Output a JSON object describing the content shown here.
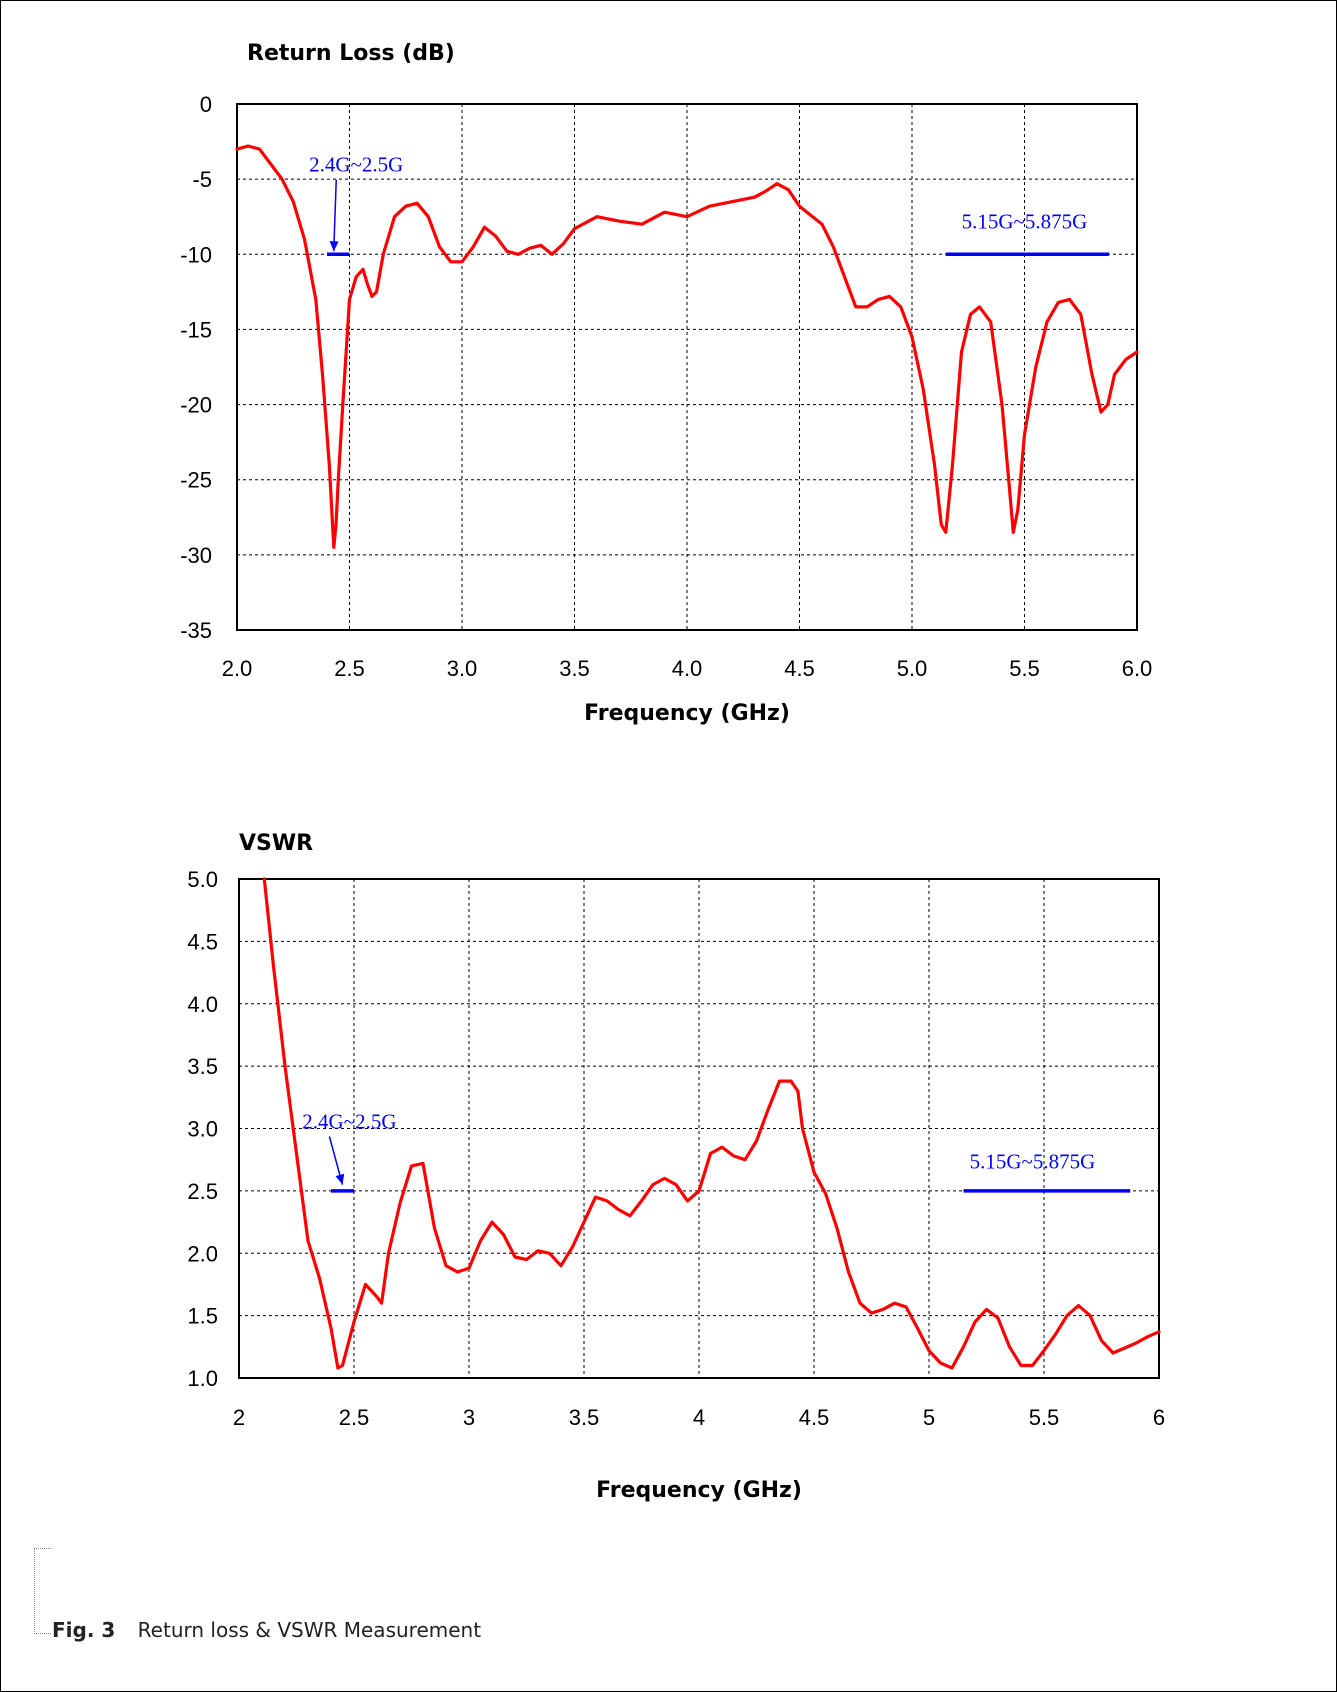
{
  "chart_data": [
    {
      "type": "line",
      "title": "Return Loss (dB)",
      "xlabel": "Frequency (GHz)",
      "ylabel": "",
      "xlim": [
        2.0,
        6.0
      ],
      "ylim": [
        -35,
        0
      ],
      "x_ticks": [
        "2.0",
        "2.5",
        "3.0",
        "3.5",
        "4.0",
        "4.5",
        "5.0",
        "5.5",
        "6.0"
      ],
      "y_ticks": [
        "0",
        "-5",
        "-10",
        "-15",
        "-20",
        "-25",
        "-30",
        "-35"
      ],
      "grid": true,
      "series": [
        {
          "color": "#ff0000",
          "x": [
            2.0,
            2.05,
            2.1,
            2.15,
            2.2,
            2.25,
            2.3,
            2.35,
            2.38,
            2.41,
            2.43,
            2.44,
            2.45,
            2.47,
            2.5,
            2.53,
            2.56,
            2.58,
            2.6,
            2.62,
            2.65,
            2.7,
            2.75,
            2.8,
            2.85,
            2.9,
            2.95,
            3.0,
            3.05,
            3.1,
            3.15,
            3.2,
            3.25,
            3.3,
            3.35,
            3.4,
            3.45,
            3.5,
            3.6,
            3.7,
            3.8,
            3.9,
            4.0,
            4.1,
            4.2,
            4.3,
            4.35,
            4.4,
            4.45,
            4.5,
            4.6,
            4.65,
            4.7,
            4.75,
            4.8,
            4.85,
            4.9,
            4.95,
            5.0,
            5.05,
            5.1,
            5.13,
            5.15,
            5.18,
            5.22,
            5.26,
            5.3,
            5.35,
            5.4,
            5.43,
            5.45,
            5.47,
            5.5,
            5.55,
            5.6,
            5.65,
            5.7,
            5.75,
            5.8,
            5.84,
            5.87,
            5.9,
            5.95,
            6.0
          ],
          "y": [
            -3.0,
            -2.8,
            -3.0,
            -4.0,
            -5.0,
            -6.5,
            -9.0,
            -13.0,
            -18.0,
            -24.0,
            -29.5,
            -28.0,
            -25.0,
            -20.0,
            -13.0,
            -11.5,
            -11.0,
            -12.0,
            -12.8,
            -12.5,
            -10.0,
            -7.5,
            -6.8,
            -6.6,
            -7.5,
            -9.5,
            -10.5,
            -10.5,
            -9.5,
            -8.2,
            -8.8,
            -9.8,
            -10.0,
            -9.6,
            -9.4,
            -10.0,
            -9.3,
            -8.3,
            -7.5,
            -7.8,
            -8.0,
            -7.2,
            -7.5,
            -6.8,
            -6.5,
            -6.2,
            -5.8,
            -5.3,
            -5.7,
            -6.8,
            -8.0,
            -9.5,
            -11.5,
            -13.5,
            -13.5,
            -13.0,
            -12.8,
            -13.5,
            -15.5,
            -19.0,
            -24.0,
            -28.0,
            -28.5,
            -24.0,
            -16.5,
            -14.0,
            -13.5,
            -14.5,
            -20.0,
            -25.0,
            -28.5,
            -27.0,
            -22.0,
            -17.5,
            -14.5,
            -13.2,
            -13.0,
            -14.0,
            -18.0,
            -20.5,
            -20.0,
            -18.0,
            -17.0,
            -16.5
          ]
        }
      ],
      "annotations": [
        {
          "text": "2.4G~2.5G",
          "x": 2.53,
          "y": -4.5,
          "color": "#0000ff",
          "arrow_to": [
            2.43,
            -9.8
          ]
        },
        {
          "text": "5.15G~5.875G",
          "x": 5.5,
          "y": -8.3,
          "color": "#0000ff"
        }
      ],
      "band_lines": [
        {
          "x1": 2.4,
          "x2": 2.5,
          "y": -10,
          "color": "#0000ff"
        },
        {
          "x1": 5.15,
          "x2": 5.875,
          "y": -10,
          "color": "#0000ff"
        }
      ]
    },
    {
      "type": "line",
      "title": "VSWR",
      "xlabel": "Frequency (GHz)",
      "ylabel": "",
      "xlim": [
        2,
        6
      ],
      "ylim": [
        1.0,
        5.0
      ],
      "x_ticks": [
        "2",
        "2.5",
        "3",
        "3.5",
        "4",
        "4.5",
        "5",
        "5.5",
        "6"
      ],
      "y_ticks": [
        "5.0",
        "4.5",
        "4.0",
        "3.5",
        "3.0",
        "2.5",
        "2.0",
        "1.5",
        "1.0"
      ],
      "grid": true,
      "series": [
        {
          "color": "#ff0000",
          "x": [
            2.11,
            2.15,
            2.2,
            2.25,
            2.3,
            2.35,
            2.4,
            2.43,
            2.45,
            2.5,
            2.55,
            2.6,
            2.62,
            2.65,
            2.7,
            2.75,
            2.8,
            2.85,
            2.9,
            2.95,
            3.0,
            3.05,
            3.1,
            3.15,
            3.2,
            3.25,
            3.3,
            3.35,
            3.4,
            3.45,
            3.5,
            3.55,
            3.6,
            3.65,
            3.7,
            3.75,
            3.8,
            3.85,
            3.9,
            3.95,
            4.0,
            4.05,
            4.1,
            4.15,
            4.2,
            4.25,
            4.3,
            4.35,
            4.4,
            4.43,
            4.45,
            4.5,
            4.55,
            4.6,
            4.65,
            4.7,
            4.75,
            4.8,
            4.85,
            4.9,
            4.95,
            5.0,
            5.05,
            5.1,
            5.15,
            5.2,
            5.25,
            5.3,
            5.35,
            5.4,
            5.45,
            5.5,
            5.55,
            5.6,
            5.65,
            5.7,
            5.75,
            5.8,
            5.85,
            5.9,
            5.95,
            6.0
          ],
          "y": [
            5.0,
            4.3,
            3.5,
            2.8,
            2.1,
            1.8,
            1.4,
            1.08,
            1.1,
            1.45,
            1.75,
            1.65,
            1.6,
            2.0,
            2.4,
            2.7,
            2.72,
            2.2,
            1.9,
            1.85,
            1.88,
            2.1,
            2.25,
            2.15,
            1.97,
            1.95,
            2.02,
            2.0,
            1.9,
            2.05,
            2.25,
            2.45,
            2.42,
            2.35,
            2.3,
            2.42,
            2.55,
            2.6,
            2.55,
            2.42,
            2.5,
            2.8,
            2.85,
            2.78,
            2.75,
            2.9,
            3.15,
            3.38,
            3.38,
            3.3,
            3.0,
            2.65,
            2.48,
            2.2,
            1.85,
            1.6,
            1.52,
            1.55,
            1.6,
            1.57,
            1.4,
            1.22,
            1.12,
            1.08,
            1.25,
            1.45,
            1.55,
            1.48,
            1.25,
            1.1,
            1.1,
            1.22,
            1.35,
            1.5,
            1.58,
            1.5,
            1.3,
            1.2,
            1.24,
            1.28,
            1.33,
            1.37
          ]
        }
      ],
      "annotations": [
        {
          "text": "2.4G~2.5G",
          "x": 2.48,
          "y": 3.0,
          "color": "#0000ff",
          "arrow_to": [
            2.45,
            2.55
          ]
        },
        {
          "text": "5.15G~5.875G",
          "x": 5.45,
          "y": 2.68,
          "color": "#0000ff"
        }
      ],
      "band_lines": [
        {
          "x1": 2.4,
          "x2": 2.5,
          "y": 2.5,
          "color": "#0000ff"
        },
        {
          "x1": 5.15,
          "x2": 5.875,
          "y": 2.5,
          "color": "#0000ff"
        }
      ]
    }
  ],
  "caption": {
    "figure": "Fig. 3",
    "text": "Return loss & VSWR Measurement"
  }
}
